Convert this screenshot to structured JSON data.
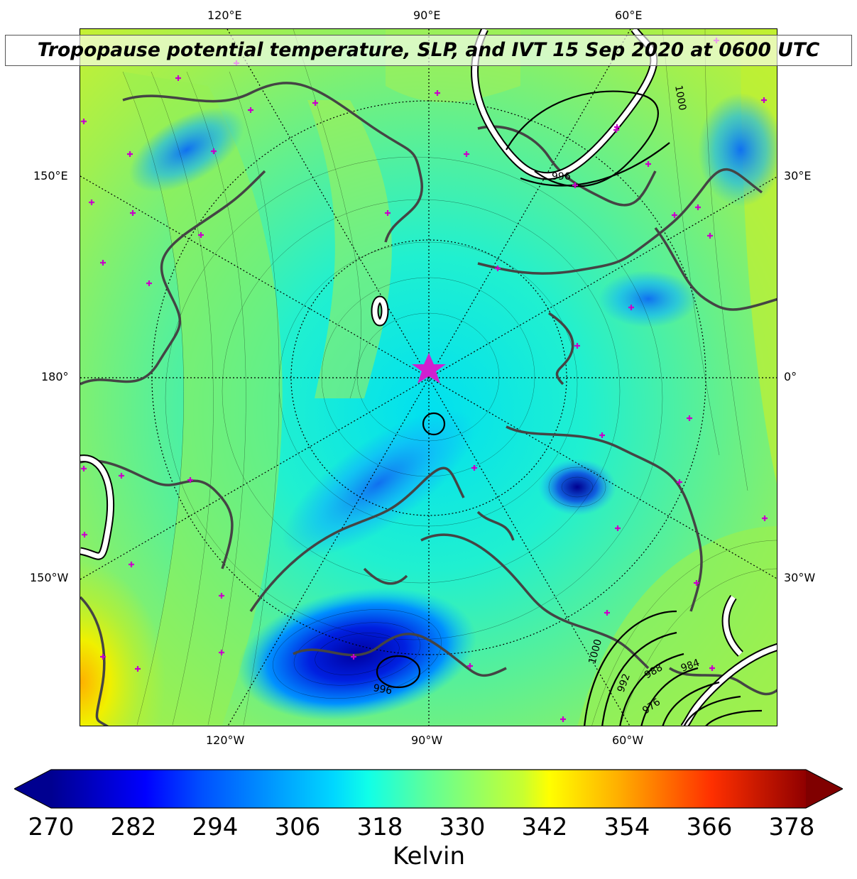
{
  "title": "Tropopause potential temperature, SLP, and IVT 15 Sep 2020 at 0600 UTC",
  "map": {
    "projection": "north-polar-stereographic",
    "longitude_labels": {
      "top": [
        "120°E",
        "90°E",
        "60°E"
      ],
      "left": [
        "150°E",
        "180°",
        "150°W"
      ],
      "right": [
        "30°E",
        "0°",
        "30°W"
      ],
      "bottom": [
        "120°W",
        "90°W",
        "60°W"
      ]
    },
    "slp_contour_labels": [
      "1000",
      "996",
      "1000",
      "992",
      "988",
      "984",
      "976",
      "996"
    ],
    "center_marker": "pole-star",
    "station_marker_color": "#c800c8",
    "coastline_color": "#444444",
    "ivt_contour_color": "#ffffff"
  },
  "colorbar": {
    "colormap": "jet",
    "extend": "both",
    "ticks": [
      "270",
      "282",
      "294",
      "306",
      "318",
      "330",
      "342",
      "354",
      "366",
      "378"
    ],
    "label": "Kelvin",
    "range": [
      270,
      378
    ]
  }
}
